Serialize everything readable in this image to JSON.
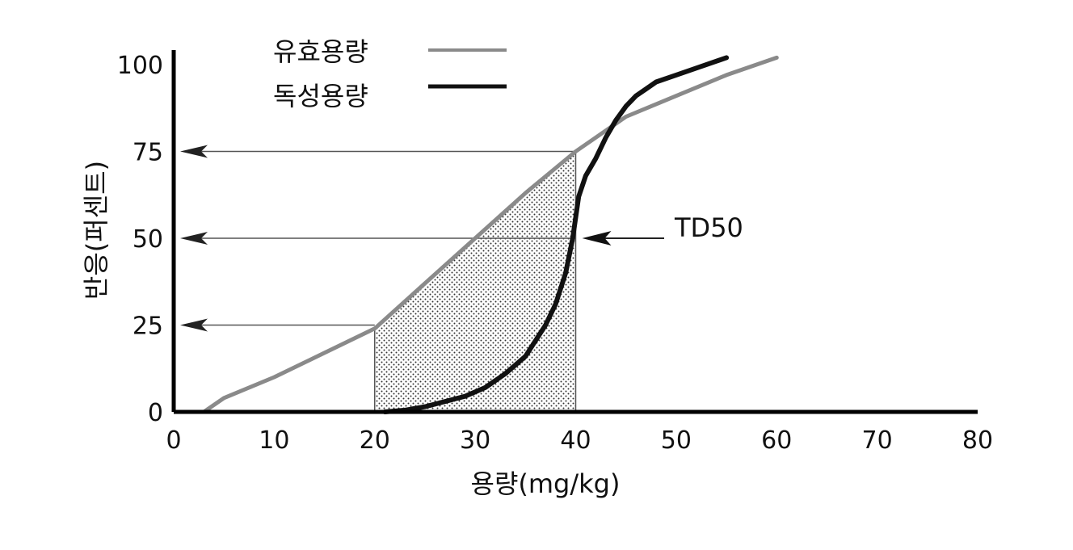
{
  "chart_data": {
    "type": "line",
    "xlabel": "용량(mg/kg)",
    "ylabel": "반응(퍼센트)",
    "xlim": [
      0,
      80
    ],
    "ylim": [
      0,
      100
    ],
    "x_ticks": [
      0,
      10,
      20,
      30,
      40,
      50,
      60,
      70,
      80
    ],
    "y_ticks": [
      0,
      25,
      50,
      75,
      100
    ],
    "grid": false,
    "legend": "top-left",
    "series": [
      {
        "name": "유효용량",
        "style": "thin-gray",
        "color": "#8a8a8a",
        "x": [
          3,
          5,
          10,
          15,
          20,
          25,
          30,
          35,
          40,
          45,
          50,
          55,
          60
        ],
        "y": [
          0,
          4,
          10,
          17,
          24,
          37,
          50,
          63,
          75,
          85,
          91,
          97,
          102
        ]
      },
      {
        "name": "독성용량",
        "style": "thick-black",
        "color": "#111111",
        "x": [
          21,
          23,
          25,
          27,
          29,
          31,
          33,
          35,
          37,
          38,
          39,
          39.7,
          40.3,
          41,
          42,
          43,
          44,
          45,
          46,
          47,
          48,
          50,
          52,
          55
        ],
        "y": [
          0,
          0.5,
          1.5,
          3,
          4.5,
          7,
          11,
          16,
          25,
          31,
          40,
          50,
          62,
          68,
          73,
          79,
          84,
          88,
          91,
          93,
          95,
          97,
          99,
          102
        ]
      }
    ],
    "reference_arrows_y": [
      75,
      50,
      25
    ],
    "shaded_region_x": [
      20,
      40
    ],
    "annotations": [
      {
        "text": "TD50",
        "x": 40,
        "y": 50
      }
    ]
  }
}
